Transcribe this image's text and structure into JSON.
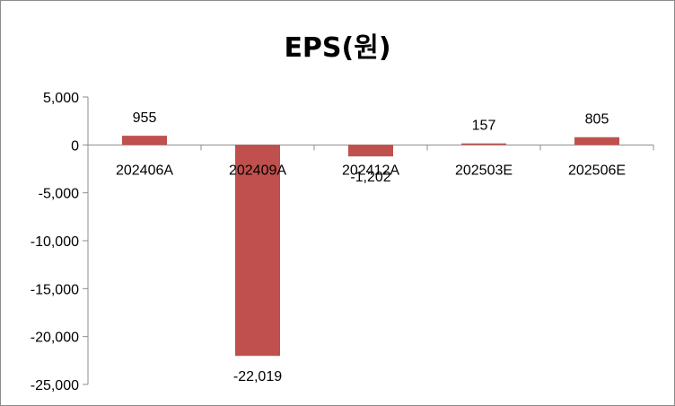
{
  "chart_data": {
    "type": "bar",
    "title": "EPS(원)",
    "xlabel": "",
    "ylabel": "",
    "categories": [
      "202406A",
      "202409A",
      "202412A",
      "202503E",
      "202506E"
    ],
    "values": [
      955,
      -22019,
      -1202,
      157,
      805
    ],
    "data_labels": [
      "955",
      "-22,019",
      "-1,202",
      "157",
      "805"
    ],
    "ylim": [
      -25000,
      5000
    ],
    "yticks": [
      5000,
      0,
      -5000,
      -10000,
      -15000,
      -20000,
      -25000
    ],
    "ytick_labels": [
      "5,000",
      "0",
      "-5,000",
      "-10,000",
      "-15,000",
      "-20,000",
      "-25,000"
    ],
    "bar_color": "#c0504d",
    "grid": false,
    "legend": "none"
  }
}
